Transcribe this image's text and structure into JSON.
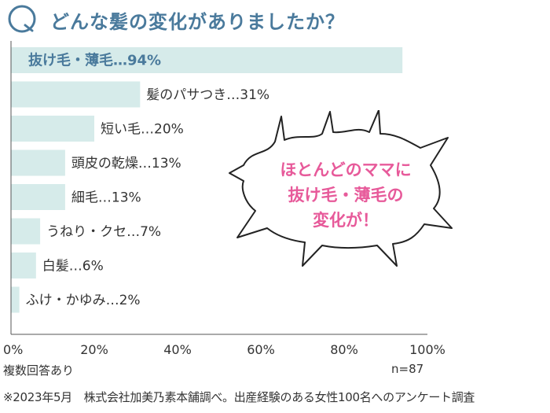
{
  "question_badge": "Q",
  "question": "どんな髪の変化がありましたか？",
  "chart_data": {
    "type": "bar",
    "orientation": "horizontal",
    "categories": [
      "抜け毛・薄毛",
      "髪のパサつき",
      "短い毛",
      "頭皮の乾燥",
      "細毛",
      "うねり・クセ",
      "白髪",
      "ふけ・かゆみ"
    ],
    "values": [
      94,
      31,
      20,
      13,
      13,
      7,
      6,
      2
    ],
    "labels": [
      "抜け毛・薄毛…94%",
      "髪のパサつき…31%",
      "短い毛…20%",
      "頭皮の乾燥…13%",
      "細毛…13%",
      "うねり・クセ…7%",
      "白髪…6%",
      "ふけ・かゆみ…2%"
    ],
    "x_ticks": [
      "0%",
      "20%",
      "40%",
      "60%",
      "80%",
      "100%"
    ],
    "xlim": [
      0,
      100
    ],
    "bar_color": "#d6ebea",
    "highlight_color": "#4a7a9c"
  },
  "notes": {
    "multiple_answers": "複数回答あり",
    "sample_size": "n=87",
    "footnote": "※2023年5月　株式会社加美乃素本舗調べ。出産経験のある女性100名へのアンケート調査"
  },
  "callout": {
    "lines": [
      "ほとんどのママに",
      "抜け毛・薄毛の",
      "変化が！"
    ],
    "color": "#e75a9a"
  },
  "colors": {
    "accent": "#4a7a9c",
    "bar": "#d6ebea",
    "callout": "#e75a9a"
  }
}
